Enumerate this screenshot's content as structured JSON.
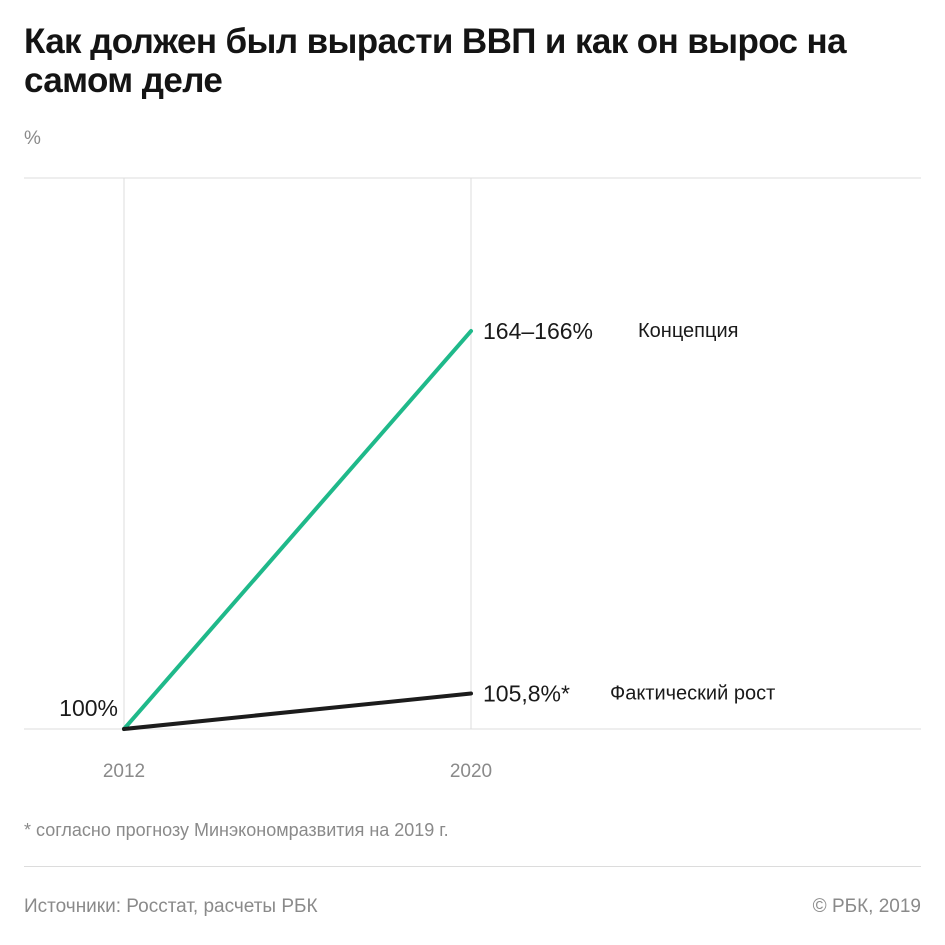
{
  "title": "Как должен был вырасти ВВП и как он вырос на самом деле",
  "unit_label": "%",
  "footnote": "* согласно прогнозу Минэкономразвития на 2019 г.",
  "source": "Источники: Росстат, расчеты РБК",
  "copyright": "© РБК, 2019",
  "colors": {
    "concept": "#1fb98a",
    "actual": "#1c1c1c",
    "grid": "#dcdcdc",
    "muted": "#8a8a8a"
  },
  "chart_data": {
    "type": "line",
    "x": [
      2012,
      2020
    ],
    "x_tick_labels": [
      "2012",
      "2020"
    ],
    "ylim": [
      100,
      190
    ],
    "grid": true,
    "start_label": "100%",
    "series": [
      {
        "name": "Концепция",
        "key": "concept",
        "values": [
          100,
          165
        ],
        "end_label": "164–166%"
      },
      {
        "name": "Фактический рост",
        "key": "actual",
        "values": [
          100,
          105.8
        ],
        "end_label": "105,8%*"
      }
    ]
  }
}
